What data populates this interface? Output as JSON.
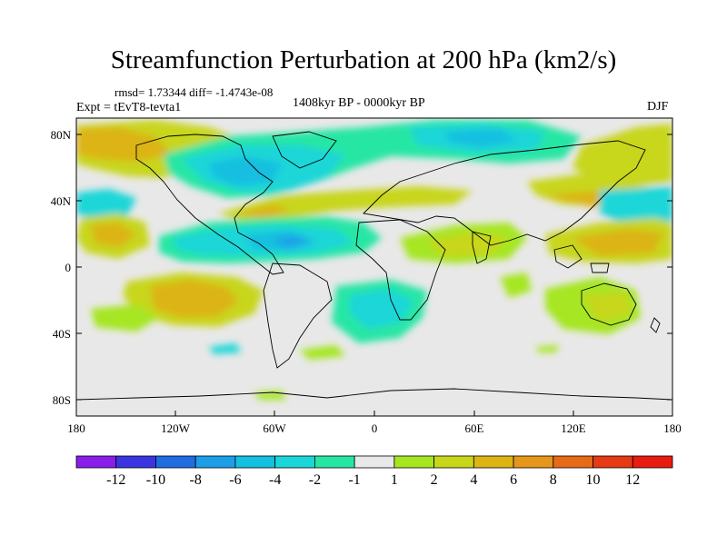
{
  "title": "Streamfunction Perturbation at 200 hPa (km2/s)",
  "stats": "rmsd= 1.73344  diff= -1.4743e-08",
  "experiment": "Expt = tEvT8-tevta1",
  "period": "1408kyr BP - 0000kyr BP",
  "season": "DJF",
  "lat_ticks": [
    "80N",
    "40N",
    "0",
    "40S",
    "80S"
  ],
  "lon_ticks": [
    "180",
    "120W",
    "60W",
    "0",
    "60E",
    "120E",
    "180"
  ],
  "colorbar": {
    "labels": [
      "-12",
      "-10",
      "-8",
      "-6",
      "-4",
      "-2",
      "-1",
      "1",
      "2",
      "4",
      "6",
      "8",
      "10",
      "12"
    ],
    "colors": [
      "#8a1ee8",
      "#3a35e0",
      "#1f6de0",
      "#1d9ee8",
      "#14bfe0",
      "#1ad6d8",
      "#27e6a4",
      "#e8e8e8",
      "#a6e620",
      "#c8d61a",
      "#dcb414",
      "#e6961a",
      "#e66a18",
      "#e63a14",
      "#e81c10"
    ]
  },
  "colors": {
    "land_outline": "#000000",
    "background": "#e8e8e8"
  }
}
